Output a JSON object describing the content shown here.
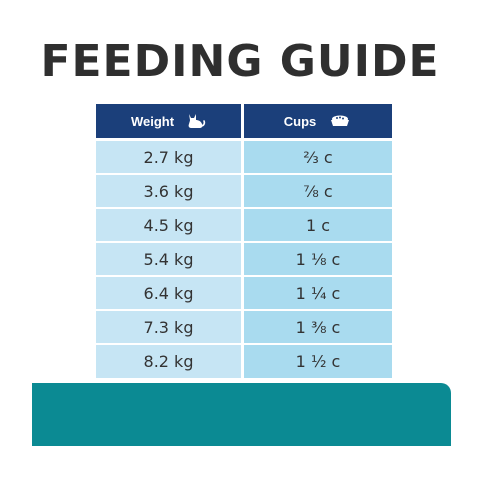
{
  "title": "FEEDING GUIDE",
  "table": {
    "header": {
      "weight_label": "Weight",
      "weight_icon": "cat-icon",
      "cups_label": "Cups",
      "cups_icon": "food-bowl-icon"
    },
    "rows": [
      {
        "weight": "2.7 kg",
        "cups": "⅔ c"
      },
      {
        "weight": "3.6 kg",
        "cups": "⅞ c"
      },
      {
        "weight": "4.5 kg",
        "cups": "1 c"
      },
      {
        "weight": "5.4 kg",
        "cups": "1 ⅛ c"
      },
      {
        "weight": "6.4 kg",
        "cups": "1 ¼ c"
      },
      {
        "weight": "7.3 kg",
        "cups": "1 ⅜ c"
      },
      {
        "weight": "8.2 kg",
        "cups": "1 ½ c"
      }
    ]
  },
  "colors": {
    "header_bg": "#1b3f7a",
    "weight_col_bg": "#c6e5f4",
    "cups_col_bg": "#a9dbef",
    "band": "#0b8a93",
    "title": "#2f2f2f"
  }
}
